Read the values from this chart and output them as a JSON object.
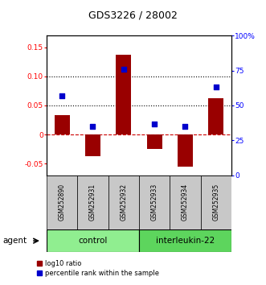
{
  "title": "GDS3226 / 28002",
  "samples": [
    "GSM252890",
    "GSM252931",
    "GSM252932",
    "GSM252933",
    "GSM252934",
    "GSM252935"
  ],
  "log10_ratio": [
    0.033,
    -0.037,
    0.137,
    -0.025,
    -0.055,
    0.063
  ],
  "percentile_rank": [
    57,
    35,
    76,
    37,
    35,
    63
  ],
  "bar_color": "#990000",
  "dot_color": "#0000CC",
  "ylim_left": [
    -0.07,
    0.17
  ],
  "ylim_right": [
    0,
    100
  ],
  "yticks_left": [
    -0.05,
    0.0,
    0.05,
    0.1,
    0.15
  ],
  "yticks_right": [
    0,
    25,
    50,
    75,
    100
  ],
  "ytick_labels_left": [
    "-0.05",
    "0",
    "0.05",
    "0.10",
    "0.15"
  ],
  "ytick_labels_right": [
    "0",
    "25",
    "50",
    "75",
    "100%"
  ],
  "hlines": [
    0.0,
    0.05,
    0.1
  ],
  "hline_styles": [
    "--",
    ":",
    ":"
  ],
  "hline_colors": [
    "#CC0000",
    "#000000",
    "#000000"
  ],
  "agent_label": "agent",
  "control_label": "control",
  "interleukin_label": "interleukin-22",
  "control_color": "#90EE90",
  "interleukin_color": "#5DD55D",
  "legend_red_label": "log10 ratio",
  "legend_blue_label": "percentile rank within the sample",
  "bar_width": 0.5,
  "sample_box_color": "#C8C8C8"
}
